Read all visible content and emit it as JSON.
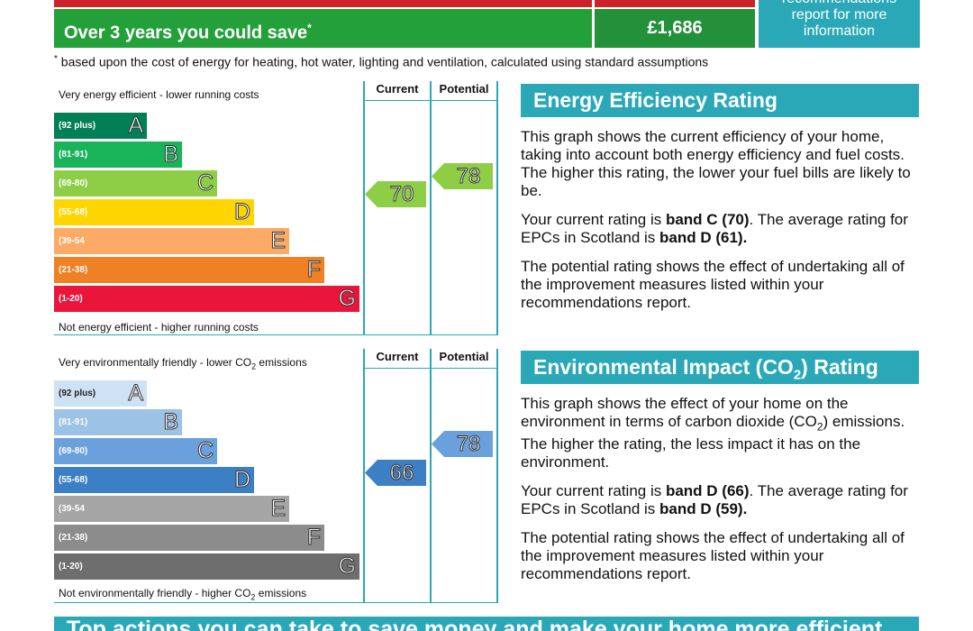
{
  "savings": {
    "label": "Over 3 years you could save",
    "label_mark": "*",
    "value": "£1,686",
    "more_info": "report for more information",
    "more_info_cut": "recommendations",
    "footnote_mark": "*",
    "footnote": "based upon the cost of energy for heating, hot water, lighting and ventilation, calculated using standard assumptions"
  },
  "energy_chart": {
    "top_caption": "Very energy efficient - lower running costs",
    "bottom_caption": "Not energy efficient - higher running costs",
    "col_current": "Current",
    "col_potential": "Potential",
    "bands": [
      {
        "range": "(92 plus)",
        "letter": "A",
        "color": "#008054"
      },
      {
        "range": "(81-91)",
        "letter": "B",
        "color": "#19b459"
      },
      {
        "range": "(69-80)",
        "letter": "C",
        "color": "#8dce46"
      },
      {
        "range": "(55-68)",
        "letter": "D",
        "color": "#ffd500"
      },
      {
        "range": "(39-54",
        "letter": "E",
        "color": "#fcaa65"
      },
      {
        "range": "(21-38)",
        "letter": "F",
        "color": "#ef8023"
      },
      {
        "range": "(1-20)",
        "letter": "G",
        "color": "#e9153b"
      }
    ],
    "current": {
      "value": "70",
      "color": "#8dce46"
    },
    "potential": {
      "value": "78",
      "color": "#8dce46"
    }
  },
  "env_chart": {
    "top_caption": "Very environmentally friendly - lower CO",
    "top_caption_sub": "2",
    "top_caption_end": " emissions",
    "bottom_caption": "Not environmentally friendly - higher CO",
    "bottom_caption_sub": "2",
    "bottom_caption_end": " emissions",
    "col_current": "Current",
    "col_potential": "Potential",
    "bands": [
      {
        "range": "(92 plus)",
        "letter": "A",
        "color": "#cfe2f3"
      },
      {
        "range": "(81-91)",
        "letter": "B",
        "color": "#9cc2e5"
      },
      {
        "range": "(69-80)",
        "letter": "C",
        "color": "#6aa0dc"
      },
      {
        "range": "(55-68)",
        "letter": "D",
        "color": "#3d7fc4"
      },
      {
        "range": "(39-54",
        "letter": "E",
        "color": "#a5a5a5"
      },
      {
        "range": "(21-38)",
        "letter": "F",
        "color": "#8c8c8c"
      },
      {
        "range": "(1-20)",
        "letter": "G",
        "color": "#6e6e6e"
      }
    ],
    "current": {
      "value": "66",
      "color": "#3d7fc4"
    },
    "potential": {
      "value": "78",
      "color": "#6aa0dc"
    }
  },
  "energy_info": {
    "heading": "Energy Efficiency Rating",
    "p1": "This graph shows the current efficiency of your home, taking into account both energy efficiency and fuel costs. The higher this rating, the lower your fuel bills are likely to be.",
    "p2_a": "Your current rating is ",
    "p2_b": "band C (70)",
    "p2_c": ". The average rating for EPCs in Scotland is ",
    "p2_d": "band D (61).",
    "p3": "The potential rating shows the effect of undertaking all of the improvement measures listed within your recommendations report."
  },
  "env_info": {
    "heading_a": "Environmental Impact (CO",
    "heading_sub": "2",
    "heading_b": ") Rating",
    "p1_a": "This graph shows the effect of your home on the environment in terms of carbon dioxide (CO",
    "p1_sub": "2",
    "p1_b": ") emissions. The higher the rating, the less impact it has on the environment.",
    "p2_a": "Your current rating is ",
    "p2_b": "band D (66)",
    "p2_c": ". The average rating for EPCs in Scotland is ",
    "p2_d": "band D (59).",
    "p3": "The potential rating shows the effect of undertaking all of the improvement measures listed within your recommendations report."
  },
  "bottom_banner": "Top actions you can take to save money and make your home more efficient"
}
